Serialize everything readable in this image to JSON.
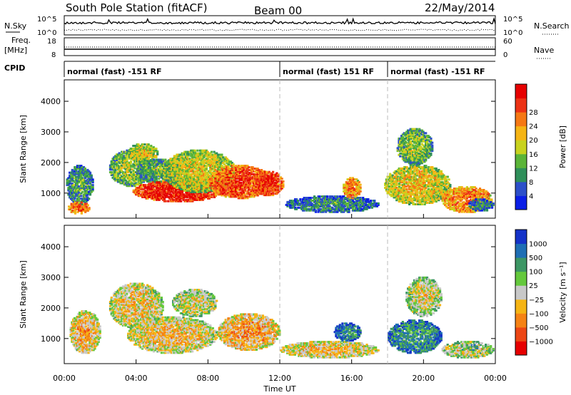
{
  "header": {
    "station": "South Pole Station (fitACF)",
    "beam": "Beam 00",
    "date": "22/May/2014"
  },
  "status_panel": {
    "nsky_label": "N.Sky",
    "nsearch_label": "N.Search",
    "freq_label_1": "Freq.",
    "freq_label_2": "[MHz]",
    "nave_label": "Nave",
    "cpid_label": "CPID",
    "noise_ticks_left": [
      "10^5",
      "10^0"
    ],
    "noise_ticks_right": [
      "10^5",
      "10^0"
    ],
    "freq_ticks": [
      "18",
      "8"
    ],
    "nave_ticks": [
      "60",
      "0"
    ],
    "cpid_segments": [
      {
        "start": 0,
        "end": 12,
        "label": "normal (fast) -151 RF"
      },
      {
        "start": 12,
        "end": 18,
        "label": "normal (fast) 151 RF"
      },
      {
        "start": 18,
        "end": 24,
        "label": "normal (fast) -151 RF"
      }
    ]
  },
  "chart_data": [
    {
      "type": "heatmap",
      "name": "power",
      "ylabel": "Slant Range [km]",
      "ylim": [
        180,
        4700
      ],
      "yticks": [
        "1000",
        "2000",
        "3000",
        "4000"
      ],
      "colorbar_label": "Power [dB]",
      "colorbar_ticks": [
        "4",
        "8",
        "12",
        "16",
        "20",
        "24",
        "28"
      ],
      "colors": [
        "#0a1ee6",
        "#2c4fc9",
        "#2f8f5a",
        "#5ab438",
        "#c8d21e",
        "#f5b414",
        "#f57814",
        "#ec3214",
        "#e60000"
      ],
      "mode_switch_hours": [
        12,
        18
      ]
    },
    {
      "type": "heatmap",
      "name": "velocity",
      "ylabel": "Slant Range [km]",
      "ylim": [
        180,
        4700
      ],
      "yticks": [
        "1000",
        "2000",
        "3000",
        "4000"
      ],
      "colorbar_label": "Velocity [m s⁻¹]",
      "colorbar_ticks": [
        "1000",
        "500",
        "100",
        "25",
        "−25",
        "−100",
        "−500",
        "−1000"
      ],
      "colors": [
        "#1432c8",
        "#1e6eb4",
        "#3c9664",
        "#64c83c",
        "#c8c8c8",
        "#f5b414",
        "#f58214",
        "#ec4614",
        "#e60000"
      ],
      "mode_switch_hours": [
        12,
        18
      ]
    }
  ],
  "x_axis": {
    "label": "Time UT",
    "xlim": [
      0,
      24
    ],
    "ticks": [
      "00:00",
      "04:00",
      "08:00",
      "12:00",
      "16:00",
      "20:00",
      "00:00"
    ]
  }
}
